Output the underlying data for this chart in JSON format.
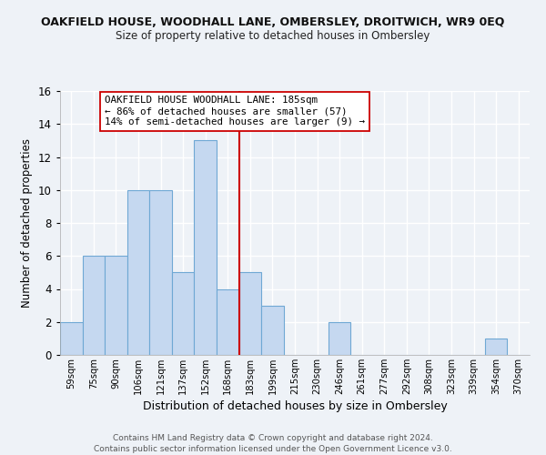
{
  "title": "OAKFIELD HOUSE, WOODHALL LANE, OMBERSLEY, DROITWICH, WR9 0EQ",
  "subtitle": "Size of property relative to detached houses in Ombersley",
  "xlabel": "Distribution of detached houses by size in Ombersley",
  "ylabel": "Number of detached properties",
  "bar_labels": [
    "59sqm",
    "75sqm",
    "90sqm",
    "106sqm",
    "121sqm",
    "137sqm",
    "152sqm",
    "168sqm",
    "183sqm",
    "199sqm",
    "215sqm",
    "230sqm",
    "246sqm",
    "261sqm",
    "277sqm",
    "292sqm",
    "308sqm",
    "323sqm",
    "339sqm",
    "354sqm",
    "370sqm"
  ],
  "bar_heights": [
    2,
    6,
    6,
    10,
    10,
    5,
    13,
    4,
    5,
    3,
    0,
    0,
    2,
    0,
    0,
    0,
    0,
    0,
    0,
    1,
    0
  ],
  "bar_color": "#c5d8f0",
  "bar_edge_color": "#6fa8d4",
  "reference_line_index": 8,
  "reference_line_color": "#cc0000",
  "ylim": [
    0,
    16
  ],
  "yticks": [
    0,
    2,
    4,
    6,
    8,
    10,
    12,
    14,
    16
  ],
  "annotation_title": "OAKFIELD HOUSE WOODHALL LANE: 185sqm",
  "annotation_line1": "← 86% of detached houses are smaller (57)",
  "annotation_line2": "14% of semi-detached houses are larger (9) →",
  "background_color": "#eef2f7",
  "footer_line1": "Contains HM Land Registry data © Crown copyright and database right 2024.",
  "footer_line2": "Contains public sector information licensed under the Open Government Licence v3.0."
}
